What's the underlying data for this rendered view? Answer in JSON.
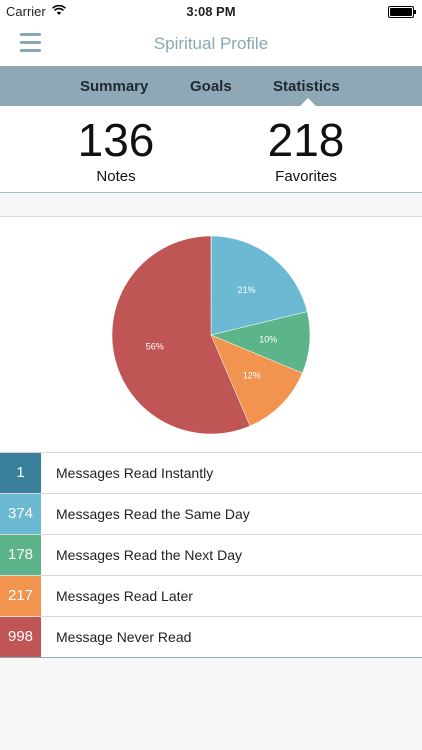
{
  "status_bar": {
    "carrier": "Carrier",
    "time": "3:08 PM"
  },
  "nav": {
    "title": "Spiritual Profile",
    "menu_icon": "hamburger-menu-icon"
  },
  "tabs": [
    {
      "label": "Summary",
      "selected": false
    },
    {
      "label": "Goals",
      "selected": false
    },
    {
      "label": "Statistics",
      "selected": true
    }
  ],
  "stats": {
    "notes": {
      "value": "136",
      "label": "Notes"
    },
    "favorites": {
      "value": "218",
      "label": "Favorites"
    }
  },
  "chart_data": {
    "type": "pie",
    "slices": [
      {
        "name": "Messages Read Instantly",
        "value": 1,
        "color": "#3a7f99",
        "label": ""
      },
      {
        "name": "Messages Read the Same Day",
        "value": 374,
        "color": "#6cb9d4",
        "label": "21%"
      },
      {
        "name": "Messages Read the Next Day",
        "value": 178,
        "color": "#5cb58a",
        "label": "10%"
      },
      {
        "name": "Messages Read Later",
        "value": 217,
        "color": "#f2934f",
        "label": "12%"
      },
      {
        "name": "Message Never Read",
        "value": 998,
        "color": "#c05555",
        "label": "56%"
      }
    ]
  },
  "legend": [
    {
      "count": "1",
      "label": "Messages Read Instantly",
      "color": "#3a7f99"
    },
    {
      "count": "374",
      "label": "Messages Read the Same Day",
      "color": "#6cb9d4"
    },
    {
      "count": "178",
      "label": "Messages Read the Next Day",
      "color": "#5cb58a"
    },
    {
      "count": "217",
      "label": "Messages Read Later",
      "color": "#f2934f"
    },
    {
      "count": "998",
      "label": "Message Never Read",
      "color": "#c05555"
    }
  ]
}
